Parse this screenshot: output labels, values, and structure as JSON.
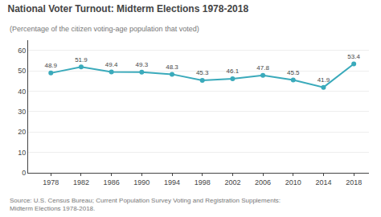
{
  "chart_data": {
    "type": "line",
    "title": "National Voter Turnout: Midterm Elections 1978-2018",
    "subtitle": "(Percentage of the citizen voting-age population that voted)",
    "annotations": [
      "Source: U.S. Census Bureau; Current Population Survey Voting and Registration Supplements:\nMidterm Elections 1978-2018."
    ],
    "x": [
      1978,
      1982,
      1986,
      1990,
      1994,
      1998,
      2002,
      2006,
      2010,
      2014,
      2018
    ],
    "values": [
      48.9,
      51.9,
      49.4,
      49.3,
      48.3,
      45.3,
      46.1,
      47.8,
      45.5,
      41.9,
      53.4
    ],
    "color": "#3AAABB",
    "marker": "circle",
    "line_style": "solid",
    "xlim": [
      1975,
      2020
    ],
    "xticks": [
      1978,
      1982,
      1986,
      1990,
      1994,
      1998,
      2002,
      2006,
      2010,
      2014,
      2018
    ],
    "ylim": [
      0,
      65
    ],
    "yticks": [
      0,
      10,
      20,
      30,
      40,
      50,
      60
    ],
    "grid": "y",
    "data_labels": true
  }
}
